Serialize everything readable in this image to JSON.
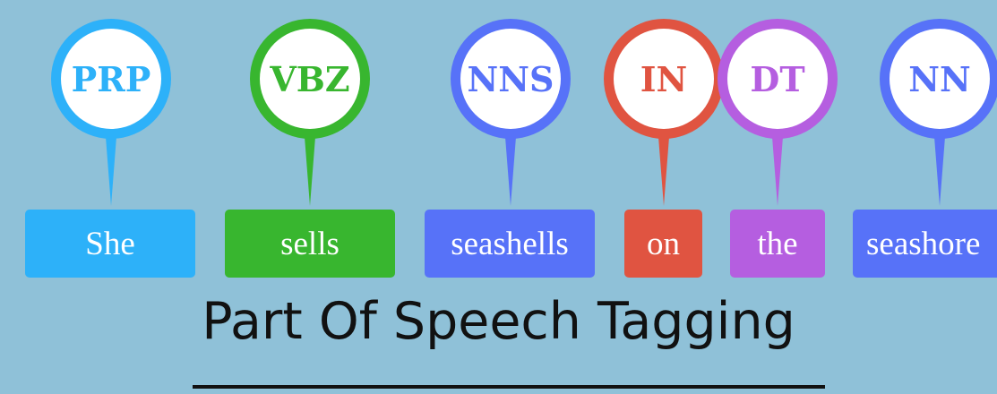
{
  "tokens": [
    {
      "tag": "PRP",
      "word": "She",
      "color": "#2db1f9"
    },
    {
      "tag": "VBZ",
      "word": "sells",
      "color": "#38b62f"
    },
    {
      "tag": "NNS",
      "word": "seashells",
      "color": "#5772f8"
    },
    {
      "tag": "IN",
      "word": "on",
      "color": "#e05441"
    },
    {
      "tag": "DT",
      "word": "the",
      "color": "#b55ee0"
    },
    {
      "tag": "NN",
      "word": "seashore",
      "color": "#5772f8"
    }
  ],
  "title": "Part Of Speech Tagging",
  "colors": {
    "background": "#8fc1d8",
    "title": "#111111"
  }
}
